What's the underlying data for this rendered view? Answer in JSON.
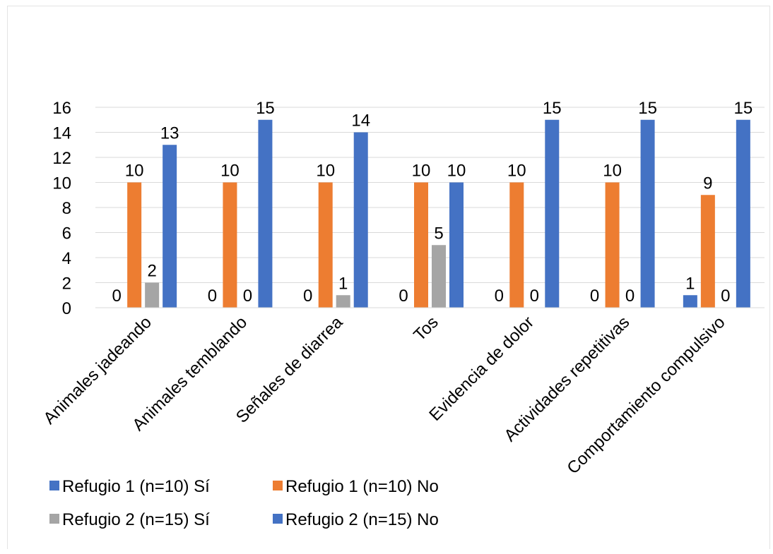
{
  "chart_data": {
    "type": "bar",
    "title": "",
    "xlabel": "",
    "ylabel": "",
    "categories": [
      "Animales jadeando",
      "Animales temblando",
      "Señales de diarrea",
      "Tos",
      "Evidencia de dolor",
      "Actividades repetitivas",
      "Comportamiento compulsivo"
    ],
    "series": [
      {
        "name": "Refugio 1 (n=10) Sí",
        "color": "#4472c4",
        "values": [
          0,
          0,
          0,
          0,
          0,
          0,
          1
        ]
      },
      {
        "name": "Refugio 1 (n=10) No",
        "color": "#ed7d31",
        "values": [
          10,
          10,
          10,
          10,
          10,
          10,
          9
        ]
      },
      {
        "name": "Refugio 2 (n=15) Sí",
        "color": "#a5a5a5",
        "values": [
          2,
          0,
          1,
          5,
          0,
          0,
          0
        ]
      },
      {
        "name": "Refugio 2 (n=15) No",
        "color": "#4472c4",
        "values": [
          13,
          15,
          14,
          10,
          15,
          15,
          15
        ]
      }
    ],
    "ylim": [
      0,
      16
    ],
    "yticks": [
      0,
      2,
      4,
      6,
      8,
      10,
      12,
      14,
      16
    ],
    "grid": true,
    "data_labels": true,
    "legend_position": "bottom-left"
  }
}
